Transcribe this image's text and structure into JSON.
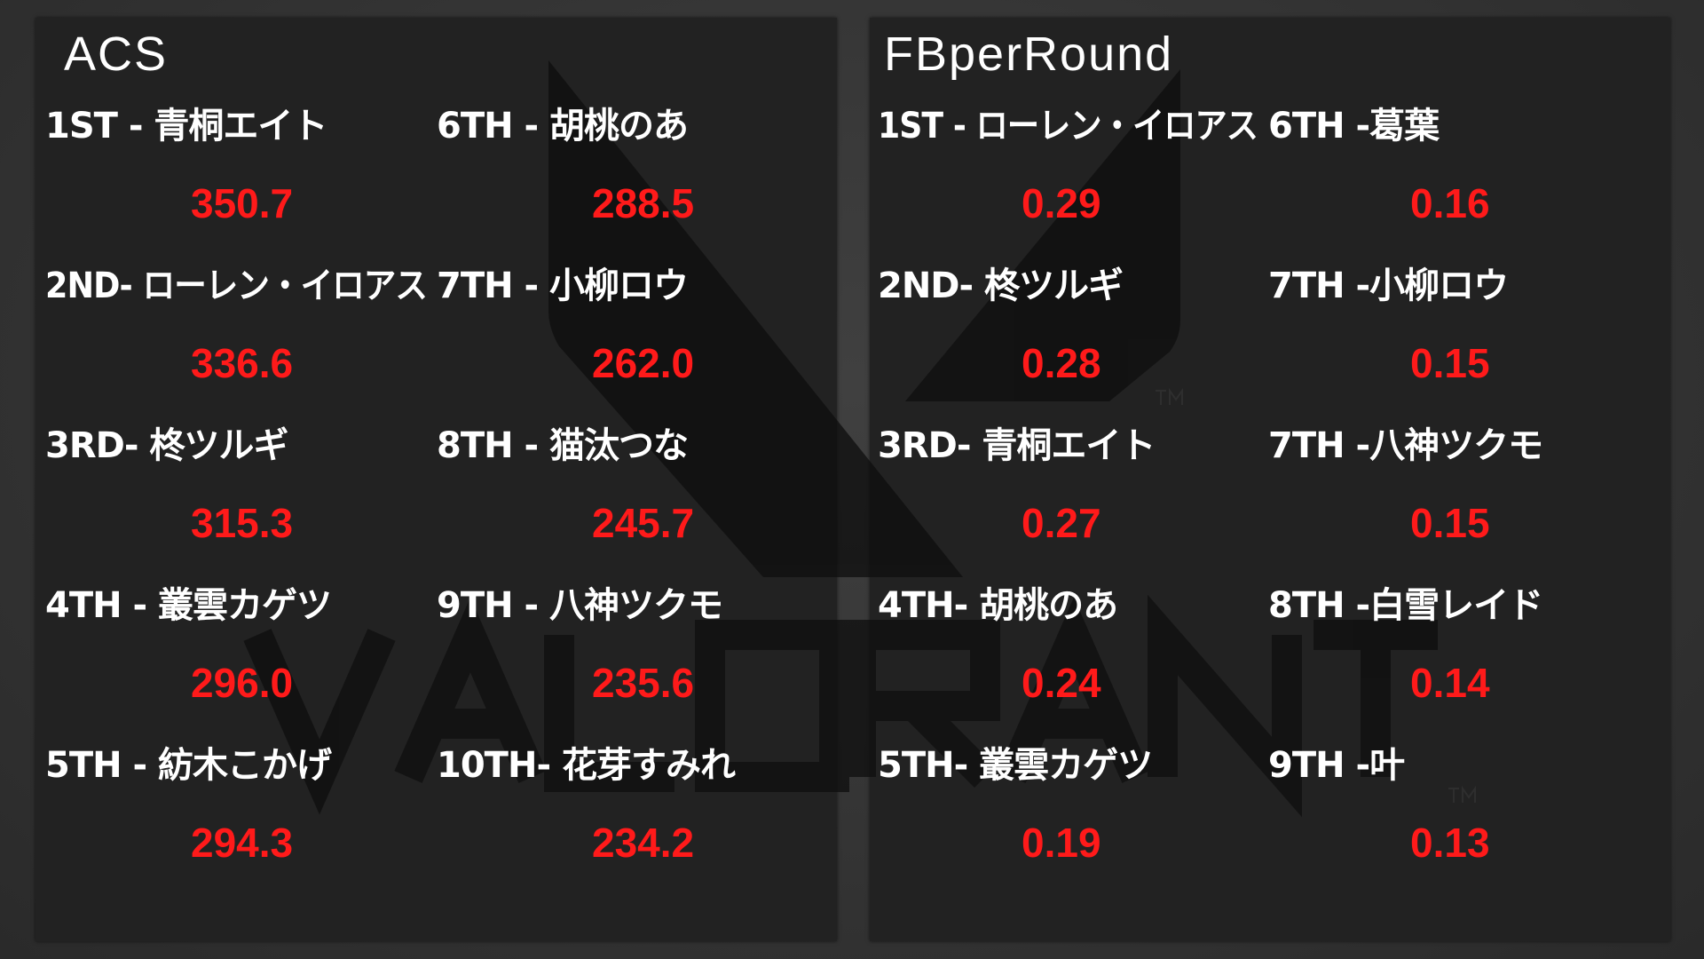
{
  "theme": {
    "value_color": "#ff1a1a",
    "label_color": "#ffffff",
    "panel_color": "#222222"
  },
  "watermark": {
    "logo_text": "VALORANT",
    "tm": "TM"
  },
  "panels": [
    {
      "title": "ACS",
      "columns": [
        [
          {
            "rank": "1ST",
            "sep": " - ",
            "name": "青桐エイト",
            "value": "350.7"
          },
          {
            "rank": "2ND",
            "sep": "- ",
            "name": "ローレン・イロアス",
            "value": "336.6"
          },
          {
            "rank": "3RD",
            "sep": "- ",
            "name": "柊ツルギ",
            "value": "315.3"
          },
          {
            "rank": "4TH",
            "sep": " - ",
            "name": "叢雲カゲツ",
            "value": "296.0"
          },
          {
            "rank": "5TH",
            "sep": " - ",
            "name": "紡木こかげ",
            "value": "294.3"
          }
        ],
        [
          {
            "rank": "6TH",
            "sep": " - ",
            "name": "胡桃のあ",
            "value": "288.5"
          },
          {
            "rank": "7TH",
            "sep": " - ",
            "name": "小柳ロウ",
            "value": "262.0"
          },
          {
            "rank": "8TH",
            "sep": " - ",
            "name": "猫汰つな",
            "value": "245.7"
          },
          {
            "rank": "9TH",
            "sep": " - ",
            "name": "八神ツクモ",
            "value": "235.6"
          },
          {
            "rank": "10TH",
            "sep": "- ",
            "name": "花芽すみれ",
            "value": "234.2"
          }
        ]
      ]
    },
    {
      "title": "FBperRound",
      "columns": [
        [
          {
            "rank": "1ST",
            "sep": " - ",
            "name": "ローレン・イロアス",
            "value": "0.29"
          },
          {
            "rank": "2ND",
            "sep": "- ",
            "name": "柊ツルギ",
            "value": "0.28"
          },
          {
            "rank": "3RD",
            "sep": "- ",
            "name": "青桐エイト",
            "value": "0.27"
          },
          {
            "rank": "4TH",
            "sep": "- ",
            "name": "胡桃のあ",
            "value": "0.24"
          },
          {
            "rank": "5TH",
            "sep": "- ",
            "name": "叢雲カゲツ",
            "value": "0.19"
          }
        ],
        [
          {
            "rank": "6TH",
            "sep": " -",
            "name": "葛葉",
            "value": "0.16"
          },
          {
            "rank": "7TH",
            "sep": " -",
            "name": "小柳ロウ",
            "value": "0.15"
          },
          {
            "rank": "7TH",
            "sep": " -",
            "name": "八神ツクモ",
            "value": "0.15"
          },
          {
            "rank": "8TH",
            "sep": " -",
            "name": "白雪レイド",
            "value": "0.14"
          },
          {
            "rank": "9TH",
            "sep": " -",
            "name": "叶",
            "value": "0.13"
          }
        ]
      ]
    }
  ]
}
